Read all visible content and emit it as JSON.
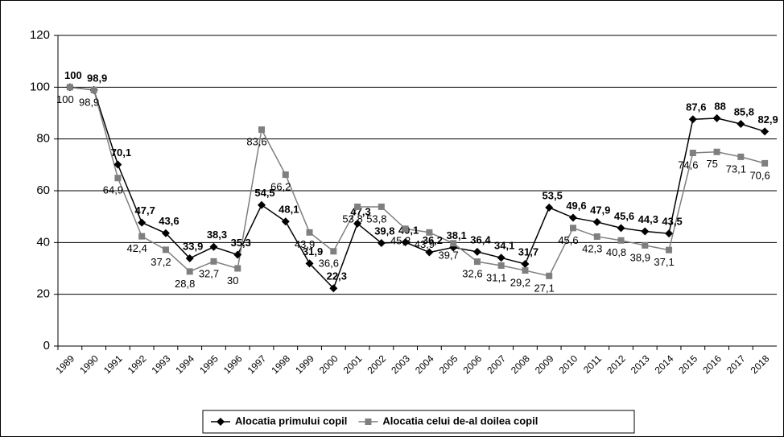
{
  "chart_data": {
    "type": "line",
    "categories": [
      "1989",
      "1990",
      "1991",
      "1992",
      "1993",
      "1994",
      "1995",
      "1996",
      "1997",
      "1998",
      "1999",
      "2000",
      "2001",
      "2002",
      "2003",
      "2004",
      "2005",
      "2006",
      "2007",
      "2008",
      "2009",
      "2010",
      "2011",
      "2012",
      "2013",
      "2014",
      "2015",
      "2016",
      "2017",
      "2018"
    ],
    "series": [
      {
        "name": "Alocatia primului copil",
        "color": "#000000",
        "marker": "diamond",
        "values": [
          100,
          98.9,
          70.1,
          47.7,
          43.6,
          33.9,
          38.3,
          35.3,
          54.5,
          48.1,
          31.9,
          22.3,
          47.3,
          39.8,
          40.1,
          36.2,
          38.1,
          36.4,
          34.1,
          31.7,
          53.5,
          49.6,
          47.9,
          45.6,
          44.3,
          43.5,
          87.6,
          88,
          85.8,
          82.9
        ],
        "value_labels": [
          "100",
          "98,9",
          "70,1",
          "47,7",
          "43,6",
          "33,9",
          "38,3",
          "35,3",
          "54,5",
          "48,1",
          "31,9",
          "22,3",
          "47,3",
          "39,8",
          "40,1",
          "36,2",
          "38,1",
          "36,4",
          "34,1",
          "31,7",
          "53,5",
          "49,6",
          "47,9",
          "45,6",
          "44,3",
          "43,5",
          "87,6",
          "88",
          "85,8",
          "82,9"
        ]
      },
      {
        "name": "Alocatia celui de-al doilea copil",
        "color": "#7f7f7f",
        "marker": "square",
        "values": [
          100,
          98.9,
          64.9,
          42.4,
          37.2,
          28.8,
          32.7,
          30,
          83.6,
          66.2,
          43.9,
          36.6,
          53.8,
          53.8,
          45.3,
          43.9,
          39.7,
          32.6,
          31.1,
          29.2,
          27.1,
          45.6,
          42.3,
          40.8,
          38.9,
          37.1,
          74.6,
          75,
          73.1,
          70.6
        ],
        "value_labels": [
          "100",
          "98,9",
          "64,9",
          "42,4",
          "37,2",
          "28,8",
          "32,7",
          "30",
          "83,6",
          "66,2",
          "43,9",
          "36,6",
          "53,8",
          "53,8",
          "45,3",
          "43,9",
          "39,7",
          "32,6",
          "31,1",
          "29,2",
          "27,1",
          "45,6",
          "42,3",
          "40,8",
          "38,9",
          "37,1",
          "74,6",
          "75",
          "73,1",
          "70,6"
        ]
      }
    ],
    "ylim": [
      0,
      120
    ],
    "yticks": [
      0,
      20,
      40,
      60,
      80,
      100,
      120
    ],
    "grid": true,
    "legend": "bottom"
  }
}
